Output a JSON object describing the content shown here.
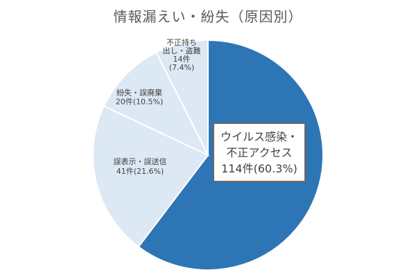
{
  "chart_data": {
    "type": "pie",
    "title": "情報漏えい・紛失（原因別）",
    "categories": [
      "ウイルス感染・不正アクセス",
      "誤表示・誤送信",
      "紛失・誤廃棄",
      "不正持ち出し・盗難"
    ],
    "values": [
      114,
      41,
      20,
      14
    ],
    "percents": [
      "60.3%",
      "21.6%",
      "10.5%",
      "7.4%"
    ],
    "colors": [
      "#2e75b6",
      "#dde8f5",
      "#dde8f5",
      "#dde8f5"
    ],
    "start": "12 o'clock",
    "direction": "clockwise",
    "labels": [
      {
        "lines": [
          "ウイルス感染・",
          "不正アクセス",
          "114件(60.3%)"
        ]
      },
      {
        "lines": [
          "誤表示・誤送信",
          "41件(21.6%)"
        ]
      },
      {
        "lines": [
          "紛失・誤廃棄",
          "20件(10.5%)"
        ]
      },
      {
        "lines": [
          "不正持ち",
          "出し・盗難",
          "14件",
          "(7.4%)"
        ]
      }
    ]
  }
}
